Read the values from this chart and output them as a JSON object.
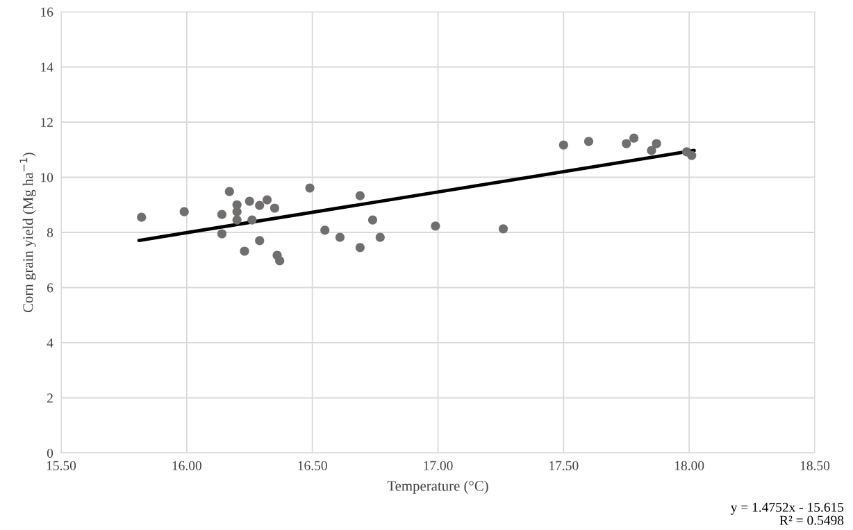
{
  "chart_data": {
    "type": "scatter",
    "xlabel": "Temperature (°C)",
    "ylabel": "Corn grain yield (Mg ha$^{−1}$)",
    "xlim": [
      15.5,
      18.5
    ],
    "ylim": [
      0,
      16
    ],
    "xticks": [
      {
        "value": 15.5,
        "label": "15.50"
      },
      {
        "value": 16.0,
        "label": "16.00"
      },
      {
        "value": 16.5,
        "label": "16.50"
      },
      {
        "value": 17.0,
        "label": "17.00"
      },
      {
        "value": 17.5,
        "label": "17.50"
      },
      {
        "value": 18.0,
        "label": "18.00"
      },
      {
        "value": 18.5,
        "label": "18.50"
      }
    ],
    "yticks": [
      0,
      2,
      4,
      6,
      8,
      10,
      12,
      14,
      16
    ],
    "grid": true,
    "series": [
      {
        "marker": "circle",
        "color": "#716e6e",
        "x": [
          15.82,
          15.99,
          16.17,
          16.14,
          16.14,
          16.2,
          16.2,
          16.2,
          16.23,
          16.25,
          16.26,
          16.29,
          16.29,
          16.32,
          16.35,
          16.36,
          16.37,
          16.49,
          16.55,
          16.61,
          16.69,
          16.69,
          16.74,
          16.77,
          16.99,
          17.26,
          17.5,
          17.6,
          17.75,
          17.78,
          17.87,
          17.85,
          17.99,
          18.01
        ],
        "values": [
          8.55,
          8.75,
          9.48,
          8.65,
          7.95,
          9.0,
          8.75,
          8.45,
          7.32,
          9.13,
          8.45,
          8.98,
          7.7,
          9.18,
          8.88,
          7.17,
          6.97,
          9.61,
          8.08,
          7.82,
          7.45,
          9.33,
          8.45,
          7.82,
          8.23,
          8.13,
          11.17,
          11.3,
          11.22,
          11.42,
          11.22,
          10.97,
          10.92,
          10.79
        ]
      },
      {
        "type": "line",
        "color": "#000000",
        "x": [
          15.81,
          18.02
        ],
        "values": [
          7.71,
          10.97
        ]
      }
    ],
    "annotations": [
      "y = 1.4752x - 15.615",
      "R² = 0.5498"
    ]
  }
}
